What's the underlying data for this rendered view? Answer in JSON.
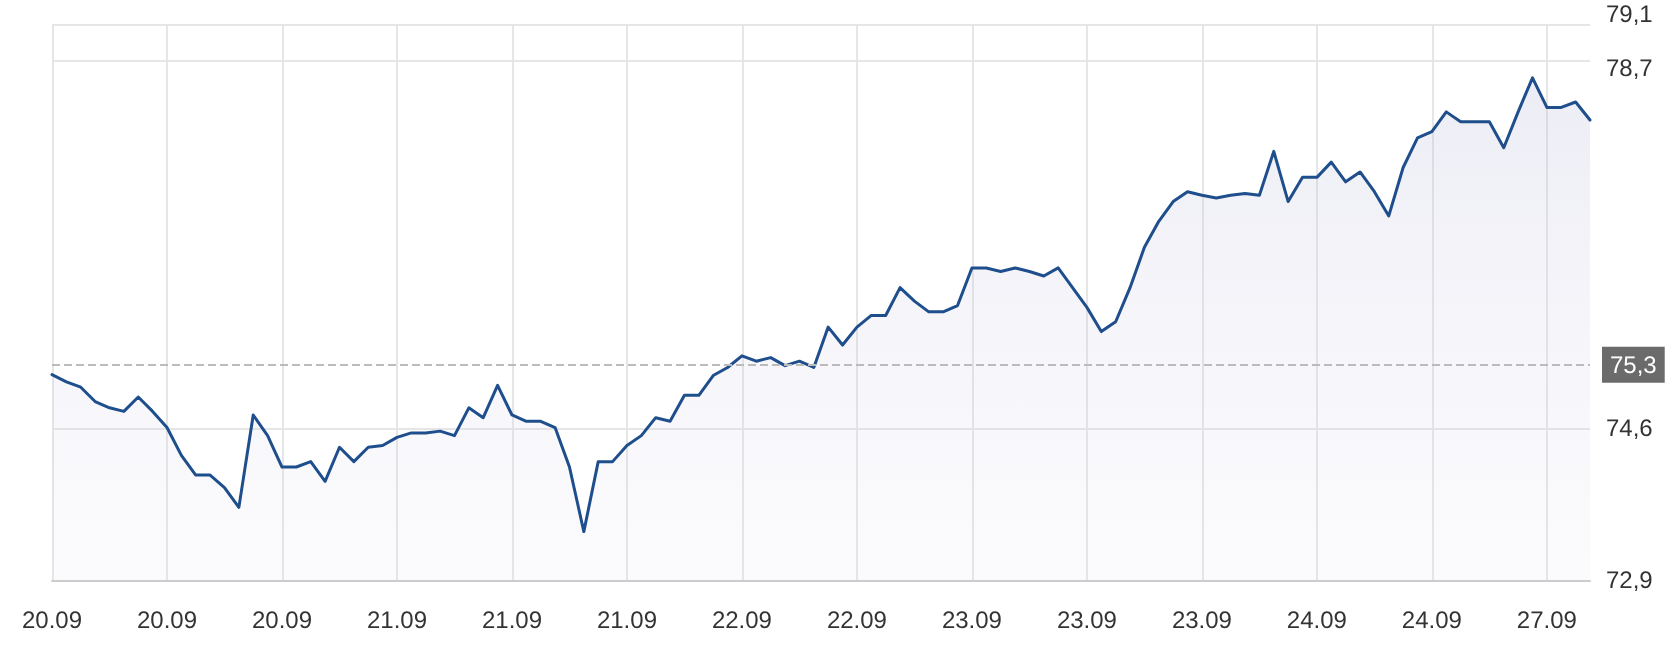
{
  "chart_data": {
    "type": "area",
    "categories": [
      "20.09",
      null,
      null,
      null,
      null,
      null,
      null,
      null,
      "20.09",
      null,
      null,
      null,
      null,
      null,
      null,
      null,
      "20.09",
      null,
      null,
      null,
      null,
      null,
      null,
      null,
      "21.09",
      null,
      null,
      null,
      null,
      null,
      null,
      null,
      "21.09",
      null,
      null,
      null,
      null,
      null,
      null,
      null,
      "21.09",
      null,
      null,
      null,
      null,
      null,
      null,
      null,
      "22.09",
      null,
      null,
      null,
      null,
      null,
      null,
      null,
      "22.09",
      null,
      null,
      null,
      null,
      null,
      null,
      null,
      "23.09",
      null,
      null,
      null,
      null,
      null,
      null,
      null,
      "23.09",
      null,
      null,
      null,
      null,
      null,
      null,
      null,
      "23.09",
      null,
      null,
      null,
      null,
      null,
      null,
      null,
      "24.09",
      null,
      null,
      null,
      null,
      null,
      null,
      null,
      "24.09",
      null,
      null,
      null,
      null,
      null,
      null,
      null,
      "27.09",
      null,
      null,
      null
    ],
    "series": [
      {
        "color": "#1f4e8c",
        "values": [
          75.19,
          75.11,
          75.05,
          74.89,
          74.82,
          74.78,
          74.94,
          74.78,
          74.6,
          74.29,
          74.07,
          74.07,
          73.93,
          73.71,
          74.74,
          74.51,
          74.16,
          74.16,
          74.22,
          74.0,
          74.38,
          74.22,
          74.38,
          74.4,
          74.49,
          74.54,
          74.54,
          74.56,
          74.51,
          74.82,
          74.71,
          75.07,
          74.74,
          74.67,
          74.67,
          74.6,
          74.16,
          73.44,
          74.22,
          74.22,
          74.4,
          74.51,
          74.71,
          74.67,
          74.96,
          74.96,
          75.18,
          75.27,
          75.4,
          75.34,
          75.38,
          75.29,
          75.34,
          75.27,
          75.72,
          75.52,
          75.72,
          75.85,
          75.85,
          76.16,
          76.01,
          75.89,
          75.89,
          75.96,
          76.38,
          76.38,
          76.34,
          76.38,
          76.34,
          76.29,
          76.38,
          76.16,
          75.94,
          75.67,
          75.78,
          76.16,
          76.61,
          76.9,
          77.12,
          77.23,
          77.19,
          77.16,
          77.19,
          77.21,
          77.19,
          77.68,
          77.12,
          77.39,
          77.39,
          77.56,
          77.34,
          77.45,
          77.23,
          76.96,
          77.5,
          77.83,
          77.9,
          78.12,
          78.01,
          78.01,
          78.01,
          77.72,
          78.12,
          78.5,
          78.17,
          78.17,
          78.23,
          78.03
        ]
      }
    ],
    "ylim": [
      72.9,
      79.1
    ],
    "yticks": [
      {
        "value": 72.9,
        "label": "72,9"
      },
      {
        "value": 74.6,
        "label": "74,6"
      },
      {
        "value": 78.7,
        "label": "78,7"
      },
      {
        "value": 79.1,
        "label": "79,1"
      }
    ],
    "ref_lines": [
      {
        "axis": "y",
        "value": 75.3,
        "label": "75,3",
        "color": "#bbbbbb",
        "line_style": "dashed"
      }
    ],
    "grid": true,
    "marker": "none",
    "line_style": "solid"
  }
}
